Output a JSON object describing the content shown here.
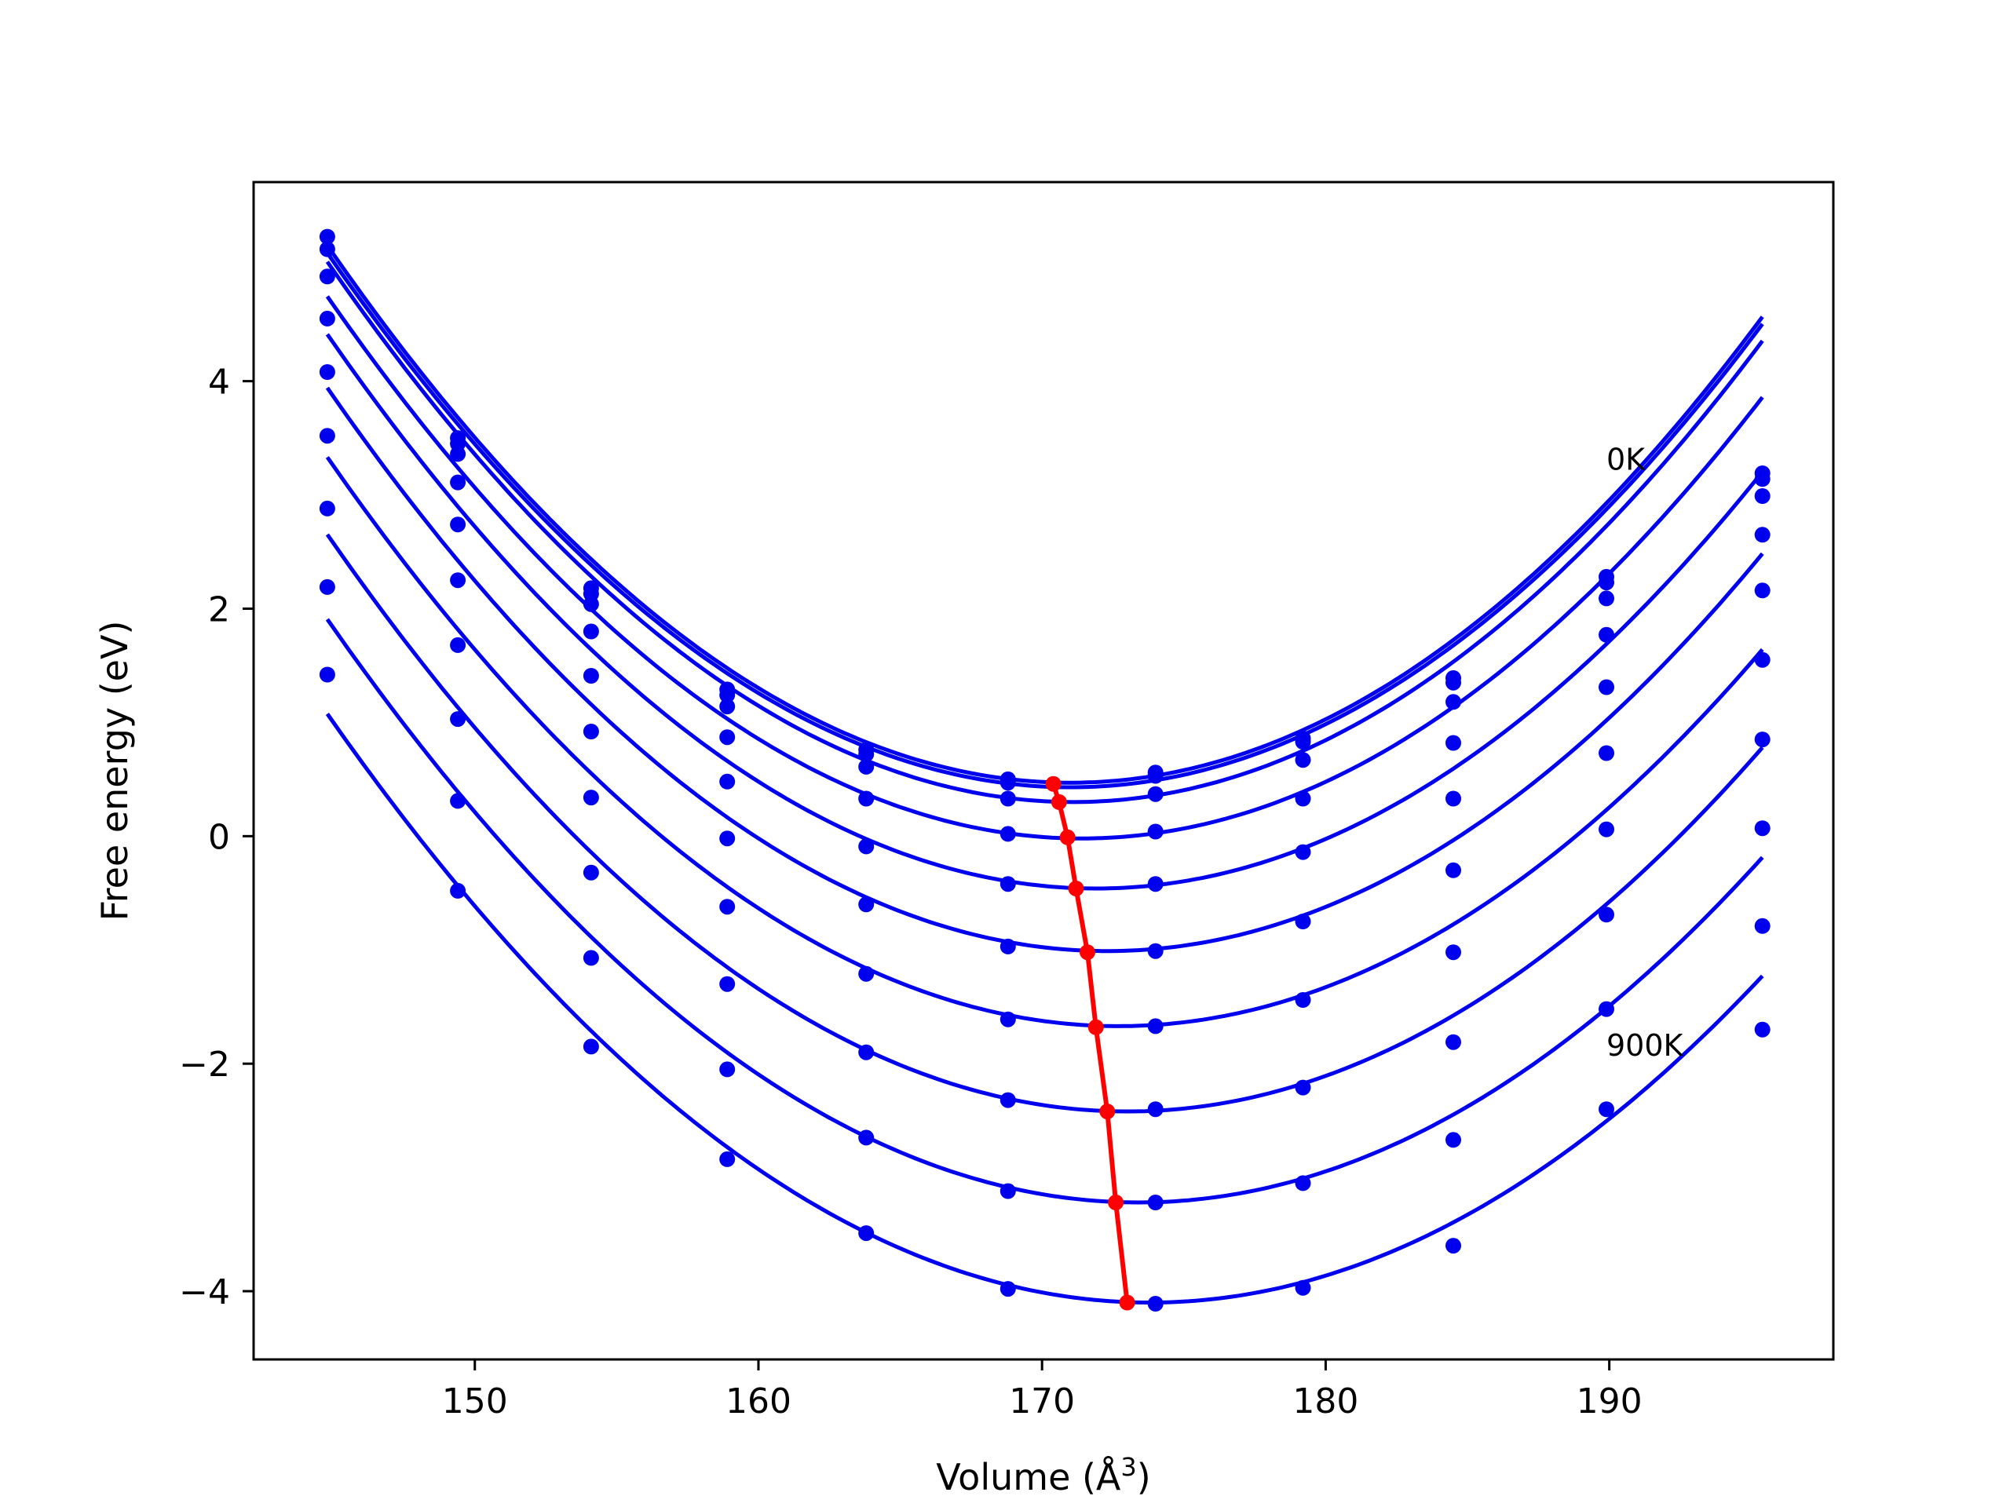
{
  "chart_data": {
    "type": "scatter",
    "xlabel": "Volume (Å",
    "xlabel_sup": "3",
    "xlabel_close": ")",
    "ylabel": "Free energy (eV)",
    "xlim": [
      142.2,
      197.9
    ],
    "ylim": [
      -4.6,
      5.75
    ],
    "xticks": [
      {
        "value": 150,
        "label": "150"
      },
      {
        "value": 160,
        "label": "160"
      },
      {
        "value": 170,
        "label": "170"
      },
      {
        "value": 180,
        "label": "180"
      },
      {
        "value": 190,
        "label": "190"
      }
    ],
    "yticks": [
      {
        "value": 4,
        "label": "4"
      },
      {
        "value": 2,
        "label": "2"
      },
      {
        "value": 0,
        "label": "0"
      },
      {
        "value": -2,
        "label": "−2"
      },
      {
        "value": -4,
        "label": "−4"
      }
    ],
    "grid": false,
    "legend": "none",
    "colors": {
      "points": "#0000ee",
      "fits": "#0000ee",
      "minima": "#ff0000"
    },
    "volumes": [
      144.8,
      149.4,
      154.1,
      158.9,
      163.8,
      168.8,
      174.0,
      179.2,
      184.5,
      189.9,
      195.4
    ],
    "series": [
      {
        "temperature_index": 0,
        "values": [
          5.27,
          3.5,
          2.18,
          1.29,
          0.76,
          0.5,
          0.56,
          0.86,
          1.39,
          2.28,
          3.19
        ]
      },
      {
        "temperature_index": 1,
        "values": [
          5.16,
          3.45,
          2.13,
          1.24,
          0.72,
          0.47,
          0.53,
          0.83,
          1.35,
          2.23,
          3.14
        ]
      },
      {
        "temperature_index": 2,
        "values": [
          4.92,
          3.36,
          2.04,
          1.14,
          0.61,
          0.33,
          0.37,
          0.67,
          1.18,
          2.09,
          2.99
        ]
      },
      {
        "temperature_index": 3,
        "values": [
          4.55,
          3.11,
          1.8,
          0.87,
          0.33,
          0.02,
          0.04,
          0.33,
          0.82,
          1.77,
          2.65
        ]
      },
      {
        "temperature_index": 4,
        "values": [
          4.08,
          2.74,
          1.41,
          0.48,
          -0.09,
          -0.42,
          -0.42,
          -0.14,
          0.33,
          1.31,
          2.16
        ]
      },
      {
        "temperature_index": 5,
        "values": [
          3.52,
          2.25,
          0.92,
          -0.02,
          -0.6,
          -0.97,
          -1.01,
          -0.75,
          -0.3,
          0.73,
          1.55
        ]
      },
      {
        "temperature_index": 6,
        "values": [
          2.88,
          1.68,
          0.34,
          -0.62,
          -1.21,
          -1.61,
          -1.67,
          -1.44,
          -1.02,
          0.06,
          0.85
        ]
      },
      {
        "temperature_index": 7,
        "values": [
          2.19,
          1.03,
          -0.32,
          -1.3,
          -1.9,
          -2.32,
          -2.4,
          -2.21,
          -1.81,
          -0.69,
          0.07
        ]
      },
      {
        "temperature_index": 8,
        "values": [
          1.42,
          0.31,
          -1.07,
          -2.05,
          -2.65,
          -3.12,
          -3.22,
          -3.05,
          -2.67,
          -1.52,
          -0.79
        ]
      },
      {
        "temperature_index": 9,
        "values": [
          null,
          -0.48,
          -1.85,
          -2.84,
          -3.49,
          -3.98,
          -4.11,
          -3.97,
          -3.6,
          -2.4,
          -1.7
        ]
      }
    ],
    "fit_curves": [
      {
        "a": 0.00688,
        "v0": 171.0,
        "e0": 0.47
      },
      {
        "a": 0.006842,
        "v0": 171.0,
        "e0": 0.43
      },
      {
        "a": 0.006867,
        "v0": 171.1,
        "e0": 0.3
      },
      {
        "a": 0.006734,
        "v0": 171.4,
        "e0": -0.02
      },
      {
        "a": 0.006634,
        "v0": 171.9,
        "e0": -0.46
      },
      {
        "a": 0.006547,
        "v0": 172.3,
        "e0": -1.01
      },
      {
        "a": 0.006425,
        "v0": 172.7,
        "e0": -1.67
      },
      {
        "a": 0.006378,
        "v0": 173.0,
        "e0": -2.42
      },
      {
        "a": 0.006268,
        "v0": 173.4,
        "e0": -3.22
      },
      {
        "a": 0.006154,
        "v0": 173.8,
        "e0": -4.1
      }
    ],
    "minima": {
      "x": [
        170.4,
        170.6,
        170.9,
        171.2,
        171.6,
        171.9,
        172.3,
        172.6,
        173.0
      ],
      "y": [
        0.46,
        0.3,
        -0.01,
        -0.46,
        -1.02,
        -1.68,
        -2.42,
        -3.22,
        -4.1
      ]
    },
    "annotations": [
      {
        "text": "0K",
        "x": 189.9,
        "y": 3.22
      },
      {
        "text": "900K",
        "x": 189.9,
        "y": -1.93
      }
    ]
  }
}
